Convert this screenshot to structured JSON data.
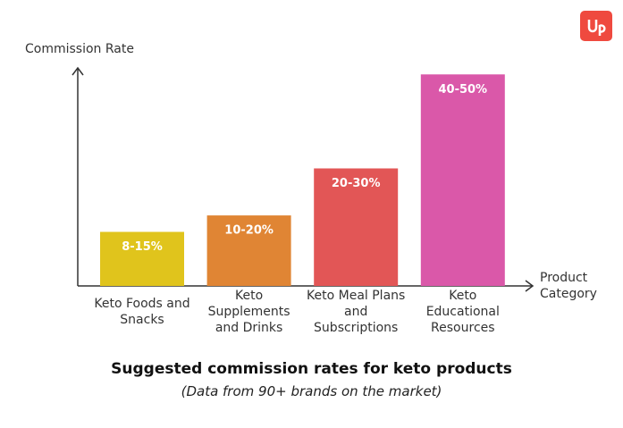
{
  "chart_data": {
    "type": "bar",
    "title": "Suggested commission rates for keto products",
    "subtitle": "(Data from 90+ brands on the market)",
    "y_label": "Commission Rate",
    "x_label": "Product Category",
    "categories": [
      "Keto Foods and Snacks",
      "Keto Supplements and Drinks",
      "Keto Meal Plans and Subscriptions",
      "Keto Educational Resources"
    ],
    "values": [
      11.5,
      15,
      25,
      45
    ],
    "value_labels": [
      "8-15%",
      "10-20%",
      "20-30%",
      "40-50%"
    ],
    "colors": [
      "#e0c41c",
      "#e08534",
      "#e25656",
      "#da58a9"
    ],
    "ylim": [
      0,
      46
    ]
  }
}
